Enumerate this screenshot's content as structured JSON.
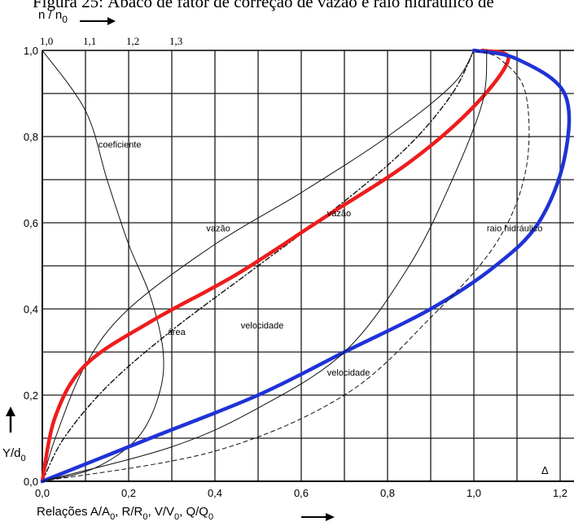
{
  "title": "Figura 25: Ábaco de fator de correção de vazão e raio hidráulico de",
  "chart_data": {
    "type": "line",
    "top_axis": {
      "label": "n / n",
      "label_subscript": "0",
      "ticks": [
        {
          "value": 1.0,
          "label": "1,0"
        },
        {
          "value": 1.1,
          "label": "1,1"
        },
        {
          "value": 1.2,
          "label": "1,2"
        },
        {
          "value": 1.3,
          "label": "1,3"
        }
      ]
    },
    "xlabel": {
      "parts": [
        {
          "t": "Relações A/A"
        },
        {
          "sub": "0"
        },
        {
          "t": ", R/R"
        },
        {
          "sub": "0"
        },
        {
          "t": ", V/V"
        },
        {
          "sub": "0"
        },
        {
          "t": ",  Q/Q"
        },
        {
          "sub": "0"
        }
      ]
    },
    "ylabel": {
      "text": "Y/d",
      "subscript": "0"
    },
    "xlim": [
      0,
      1.25
    ],
    "ylim": [
      0,
      1.0
    ],
    "x_ticks": [
      "0,0",
      "0,2",
      "0,4",
      "0,6",
      "0,8",
      "1,0",
      "1,2"
    ],
    "y_ticks": [
      "0,0",
      "0,2",
      "0,4",
      "0,6",
      "0,8",
      "1,0"
    ],
    "grid": true,
    "corner_mark": "Δ",
    "series": [
      {
        "name": "coeficiente",
        "style": "thin",
        "color": "#111111",
        "label_at": [
          0.13,
          0.775
        ],
        "points": [
          [
            0.0,
            1.0
          ],
          [
            0.1,
            0.86
          ],
          [
            0.15,
            0.7
          ],
          [
            0.2,
            0.55
          ],
          [
            0.25,
            0.43
          ],
          [
            0.28,
            0.3
          ],
          [
            0.27,
            0.2
          ],
          [
            0.22,
            0.1
          ],
          [
            0.12,
            0.03
          ],
          [
            0.0,
            0.0
          ]
        ]
      },
      {
        "name": "vazão",
        "style": "thin",
        "color": "#111111",
        "label_at": [
          0.38,
          0.58
        ],
        "points": [
          [
            0.0,
            0.0
          ],
          [
            0.03,
            0.1
          ],
          [
            0.1,
            0.27
          ],
          [
            0.2,
            0.4
          ],
          [
            0.4,
            0.55
          ],
          [
            0.6,
            0.67
          ],
          [
            0.8,
            0.8
          ],
          [
            0.95,
            0.92
          ],
          [
            1.0,
            1.0
          ]
        ]
      },
      {
        "name": "área",
        "style": "dashdot",
        "color": "#111111",
        "label_at": [
          0.29,
          0.34
        ],
        "points": [
          [
            0.0,
            0.0
          ],
          [
            0.05,
            0.1
          ],
          [
            0.15,
            0.22
          ],
          [
            0.3,
            0.35
          ],
          [
            0.5,
            0.5
          ],
          [
            0.7,
            0.65
          ],
          [
            0.85,
            0.78
          ],
          [
            0.95,
            0.9
          ],
          [
            1.0,
            1.0
          ]
        ]
      },
      {
        "name": "vazão",
        "style": "red",
        "color": "#ee1c1c",
        "label_at": [
          0.66,
          0.615
        ],
        "points": [
          [
            0.0,
            0.0
          ],
          [
            0.03,
            0.15
          ],
          [
            0.1,
            0.27
          ],
          [
            0.25,
            0.37
          ],
          [
            0.45,
            0.48
          ],
          [
            0.65,
            0.61
          ],
          [
            0.85,
            0.74
          ],
          [
            1.0,
            0.87
          ],
          [
            1.08,
            0.98
          ],
          [
            1.02,
            1.0
          ]
        ]
      },
      {
        "name": "raio hidráulico",
        "style": "blue",
        "color": "#1f33d6",
        "label_at": [
          1.03,
          0.58
        ],
        "points": [
          [
            0.0,
            0.0
          ],
          [
            0.25,
            0.1
          ],
          [
            0.5,
            0.2
          ],
          [
            0.7,
            0.3
          ],
          [
            0.9,
            0.4
          ],
          [
            1.05,
            0.5
          ],
          [
            1.15,
            0.6
          ],
          [
            1.21,
            0.75
          ],
          [
            1.21,
            0.9
          ],
          [
            1.1,
            0.98
          ],
          [
            1.0,
            1.0
          ]
        ]
      },
      {
        "name": "velocidade",
        "style": "thin",
        "color": "#111111",
        "label_at": [
          0.46,
          0.355
        ],
        "points": [
          [
            0.0,
            0.0
          ],
          [
            0.3,
            0.08
          ],
          [
            0.5,
            0.17
          ],
          [
            0.7,
            0.3
          ],
          [
            0.85,
            0.5
          ],
          [
            0.95,
            0.7
          ],
          [
            1.02,
            0.88
          ],
          [
            1.03,
            1.0
          ]
        ]
      },
      {
        "name": "velocidade",
        "style": "dashed",
        "color": "#111111",
        "label_at": [
          0.66,
          0.245
        ],
        "points": [
          [
            0.0,
            0.0
          ],
          [
            0.4,
            0.07
          ],
          [
            0.7,
            0.2
          ],
          [
            0.9,
            0.38
          ],
          [
            1.05,
            0.55
          ],
          [
            1.12,
            0.72
          ],
          [
            1.12,
            0.9
          ],
          [
            1.06,
            0.98
          ],
          [
            1.0,
            1.0
          ]
        ]
      }
    ]
  }
}
